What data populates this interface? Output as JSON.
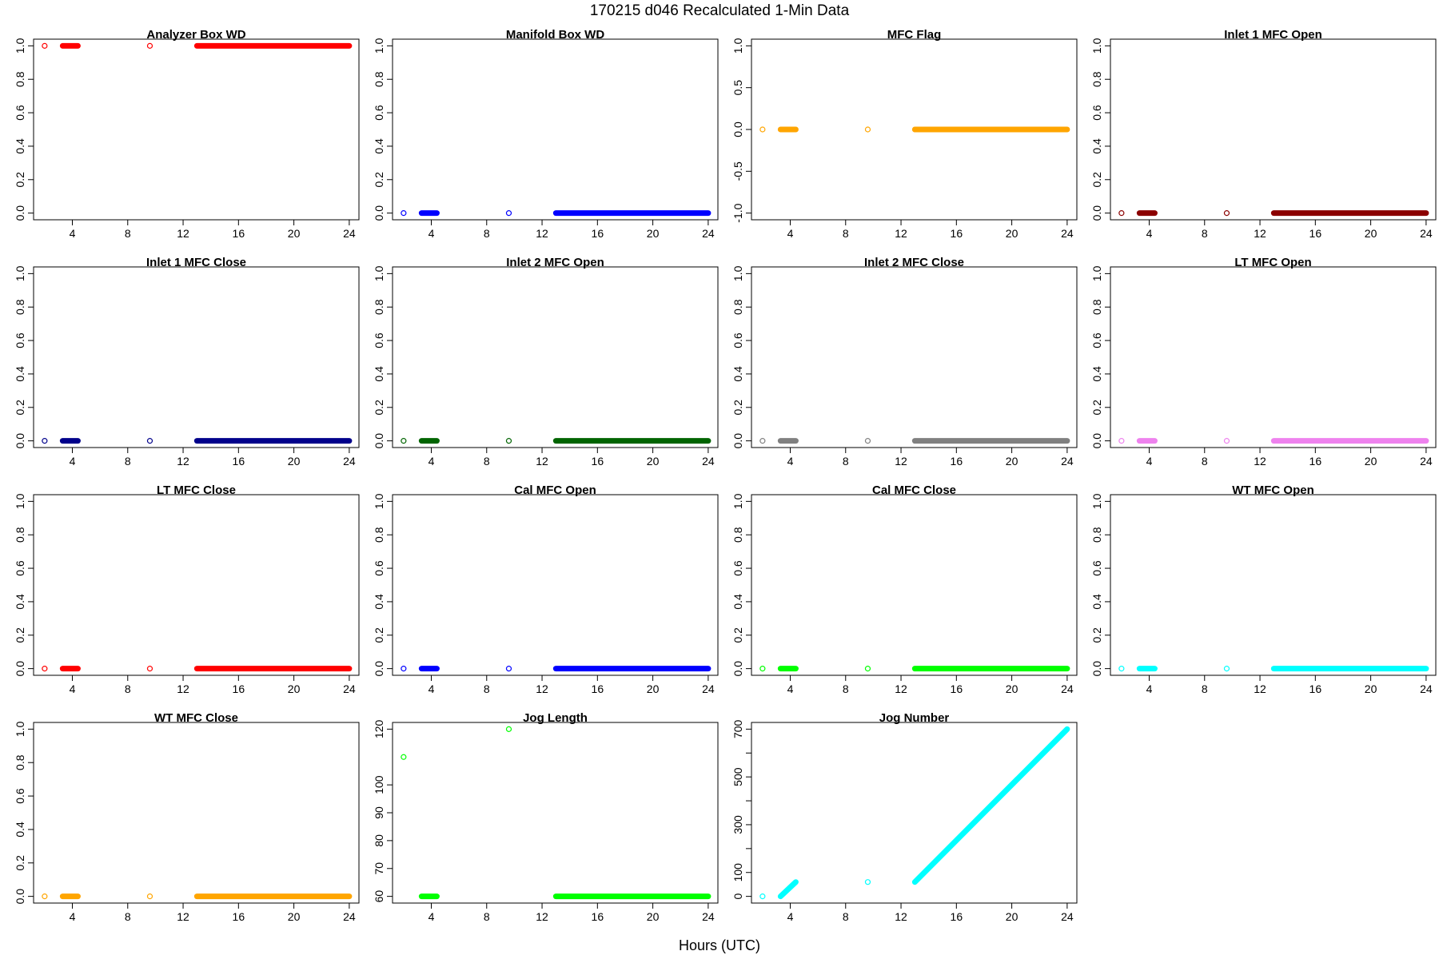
{
  "title": "170215   d046   Recalculated 1-Min Data",
  "xlabel": "Hours (UTC)",
  "chart_data": [
    {
      "type": "scatter",
      "title": "Analyzer Box WD",
      "color": "#ff0000",
      "xlim": [
        1.2,
        24.7
      ],
      "xticks": [
        4,
        8,
        12,
        16,
        20,
        24
      ],
      "ylim": [
        -0.04,
        1.04
      ],
      "yticks": [
        0.0,
        0.2,
        0.4,
        0.6,
        0.8,
        1.0
      ],
      "ytick_labels": [
        "0.0",
        "0.2",
        "0.4",
        "0.6",
        "0.8",
        "1.0"
      ],
      "pattern": "const",
      "value": 1.0
    },
    {
      "type": "scatter",
      "title": "Manifold Box WD",
      "color": "#0000ff",
      "xlim": [
        1.2,
        24.7
      ],
      "xticks": [
        4,
        8,
        12,
        16,
        20,
        24
      ],
      "ylim": [
        -0.04,
        1.04
      ],
      "yticks": [
        0.0,
        0.2,
        0.4,
        0.6,
        0.8,
        1.0
      ],
      "ytick_labels": [
        "0.0",
        "0.2",
        "0.4",
        "0.6",
        "0.8",
        "1.0"
      ],
      "pattern": "const",
      "value": 0.0
    },
    {
      "type": "scatter",
      "title": "MFC Flag",
      "color": "#ffa500",
      "xlim": [
        1.2,
        24.7
      ],
      "xticks": [
        4,
        8,
        12,
        16,
        20,
        24
      ],
      "ylim": [
        -1.08,
        1.08
      ],
      "yticks": [
        -1.0,
        -0.5,
        0.0,
        0.5,
        1.0
      ],
      "ytick_labels": [
        "-1.0",
        "-0.5",
        "0.0",
        "0.5",
        "1.0"
      ],
      "pattern": "const",
      "value": 0.0
    },
    {
      "type": "scatter",
      "title": "Inlet 1 MFC Open",
      "color": "#8b0000",
      "xlim": [
        1.2,
        24.7
      ],
      "xticks": [
        4,
        8,
        12,
        16,
        20,
        24
      ],
      "ylim": [
        -0.04,
        1.04
      ],
      "yticks": [
        0.0,
        0.2,
        0.4,
        0.6,
        0.8,
        1.0
      ],
      "ytick_labels": [
        "0.0",
        "0.2",
        "0.4",
        "0.6",
        "0.8",
        "1.0"
      ],
      "pattern": "const",
      "value": 0.0
    },
    {
      "type": "scatter",
      "title": "Inlet 1 MFC Close",
      "color": "#00008b",
      "xlim": [
        1.2,
        24.7
      ],
      "xticks": [
        4,
        8,
        12,
        16,
        20,
        24
      ],
      "ylim": [
        -0.04,
        1.04
      ],
      "yticks": [
        0.0,
        0.2,
        0.4,
        0.6,
        0.8,
        1.0
      ],
      "ytick_labels": [
        "0.0",
        "0.2",
        "0.4",
        "0.6",
        "0.8",
        "1.0"
      ],
      "pattern": "const",
      "value": 0.0
    },
    {
      "type": "scatter",
      "title": "Inlet 2 MFC Open",
      "color": "#006400",
      "xlim": [
        1.2,
        24.7
      ],
      "xticks": [
        4,
        8,
        12,
        16,
        20,
        24
      ],
      "ylim": [
        -0.04,
        1.04
      ],
      "yticks": [
        0.0,
        0.2,
        0.4,
        0.6,
        0.8,
        1.0
      ],
      "ytick_labels": [
        "0.0",
        "0.2",
        "0.4",
        "0.6",
        "0.8",
        "1.0"
      ],
      "pattern": "const",
      "value": 0.0
    },
    {
      "type": "scatter",
      "title": "Inlet 2 MFC Close",
      "color": "#808080",
      "xlim": [
        1.2,
        24.7
      ],
      "xticks": [
        4,
        8,
        12,
        16,
        20,
        24
      ],
      "ylim": [
        -0.04,
        1.04
      ],
      "yticks": [
        0.0,
        0.2,
        0.4,
        0.6,
        0.8,
        1.0
      ],
      "ytick_labels": [
        "0.0",
        "0.2",
        "0.4",
        "0.6",
        "0.8",
        "1.0"
      ],
      "pattern": "const",
      "value": 0.0
    },
    {
      "type": "scatter",
      "title": "LT MFC Open",
      "color": "#ee82ee",
      "xlim": [
        1.2,
        24.7
      ],
      "xticks": [
        4,
        8,
        12,
        16,
        20,
        24
      ],
      "ylim": [
        -0.04,
        1.04
      ],
      "yticks": [
        0.0,
        0.2,
        0.4,
        0.6,
        0.8,
        1.0
      ],
      "ytick_labels": [
        "0.0",
        "0.2",
        "0.4",
        "0.6",
        "0.8",
        "1.0"
      ],
      "pattern": "const",
      "value": 0.0
    },
    {
      "type": "scatter",
      "title": "LT MFC Close",
      "color": "#ff0000",
      "xlim": [
        1.2,
        24.7
      ],
      "xticks": [
        4,
        8,
        12,
        16,
        20,
        24
      ],
      "ylim": [
        -0.04,
        1.04
      ],
      "yticks": [
        0.0,
        0.2,
        0.4,
        0.6,
        0.8,
        1.0
      ],
      "ytick_labels": [
        "0.0",
        "0.2",
        "0.4",
        "0.6",
        "0.8",
        "1.0"
      ],
      "pattern": "const",
      "value": 0.0
    },
    {
      "type": "scatter",
      "title": "Cal MFC Open",
      "color": "#0000ff",
      "xlim": [
        1.2,
        24.7
      ],
      "xticks": [
        4,
        8,
        12,
        16,
        20,
        24
      ],
      "ylim": [
        -0.04,
        1.04
      ],
      "yticks": [
        0.0,
        0.2,
        0.4,
        0.6,
        0.8,
        1.0
      ],
      "ytick_labels": [
        "0.0",
        "0.2",
        "0.4",
        "0.6",
        "0.8",
        "1.0"
      ],
      "pattern": "const",
      "value": 0.0
    },
    {
      "type": "scatter",
      "title": "Cal MFC Close",
      "color": "#00ff00",
      "xlim": [
        1.2,
        24.7
      ],
      "xticks": [
        4,
        8,
        12,
        16,
        20,
        24
      ],
      "ylim": [
        -0.04,
        1.04
      ],
      "yticks": [
        0.0,
        0.2,
        0.4,
        0.6,
        0.8,
        1.0
      ],
      "ytick_labels": [
        "0.0",
        "0.2",
        "0.4",
        "0.6",
        "0.8",
        "1.0"
      ],
      "pattern": "const",
      "value": 0.0
    },
    {
      "type": "scatter",
      "title": "WT MFC Open",
      "color": "#00ffff",
      "xlim": [
        1.2,
        24.7
      ],
      "xticks": [
        4,
        8,
        12,
        16,
        20,
        24
      ],
      "ylim": [
        -0.04,
        1.04
      ],
      "yticks": [
        0.0,
        0.2,
        0.4,
        0.6,
        0.8,
        1.0
      ],
      "ytick_labels": [
        "0.0",
        "0.2",
        "0.4",
        "0.6",
        "0.8",
        "1.0"
      ],
      "pattern": "const",
      "value": 0.0
    },
    {
      "type": "scatter",
      "title": "WT MFC Close",
      "color": "#ffa500",
      "xlim": [
        1.2,
        24.7
      ],
      "xticks": [
        4,
        8,
        12,
        16,
        20,
        24
      ],
      "ylim": [
        -0.04,
        1.04
      ],
      "yticks": [
        0.0,
        0.2,
        0.4,
        0.6,
        0.8,
        1.0
      ],
      "ytick_labels": [
        "0.0",
        "0.2",
        "0.4",
        "0.6",
        "0.8",
        "1.0"
      ],
      "pattern": "const",
      "value": 0.0
    },
    {
      "type": "scatter",
      "title": "Jog Length",
      "color": "#00ff00",
      "xlim": [
        1.2,
        24.7
      ],
      "xticks": [
        4,
        8,
        12,
        16,
        20,
        24
      ],
      "ylim": [
        57.6,
        122.4
      ],
      "yticks": [
        60,
        70,
        80,
        90,
        100,
        120
      ],
      "ytick_labels": [
        "60",
        "70",
        "80",
        "90",
        "100",
        "120"
      ],
      "pattern": "jog_length",
      "value": 60,
      "outliers": [
        {
          "x": 2.0,
          "y": 110
        },
        {
          "x": 9.6,
          "y": 120
        }
      ]
    },
    {
      "type": "scatter",
      "title": "Jog Number",
      "color": "#00ffff",
      "xlim": [
        1.2,
        24.7
      ],
      "xticks": [
        4,
        8,
        12,
        16,
        20,
        24
      ],
      "ylim": [
        -28,
        728
      ],
      "yticks": [
        0,
        100,
        200,
        300,
        400,
        500,
        600,
        700
      ],
      "ytick_labels": [
        "0",
        "100",
        "",
        "300",
        "",
        "500",
        "",
        "700"
      ],
      "pattern": "jog_number",
      "points": [
        {
          "x": 2.0,
          "y": 0
        },
        {
          "x": 9.6,
          "y": 60
        }
      ],
      "segments": [
        {
          "x0": 3.3,
          "x1": 4.4,
          "y0": 0,
          "y1": 60
        },
        {
          "x0": 13.0,
          "x1": 24.0,
          "y0": 60,
          "y1": 700
        }
      ]
    }
  ]
}
